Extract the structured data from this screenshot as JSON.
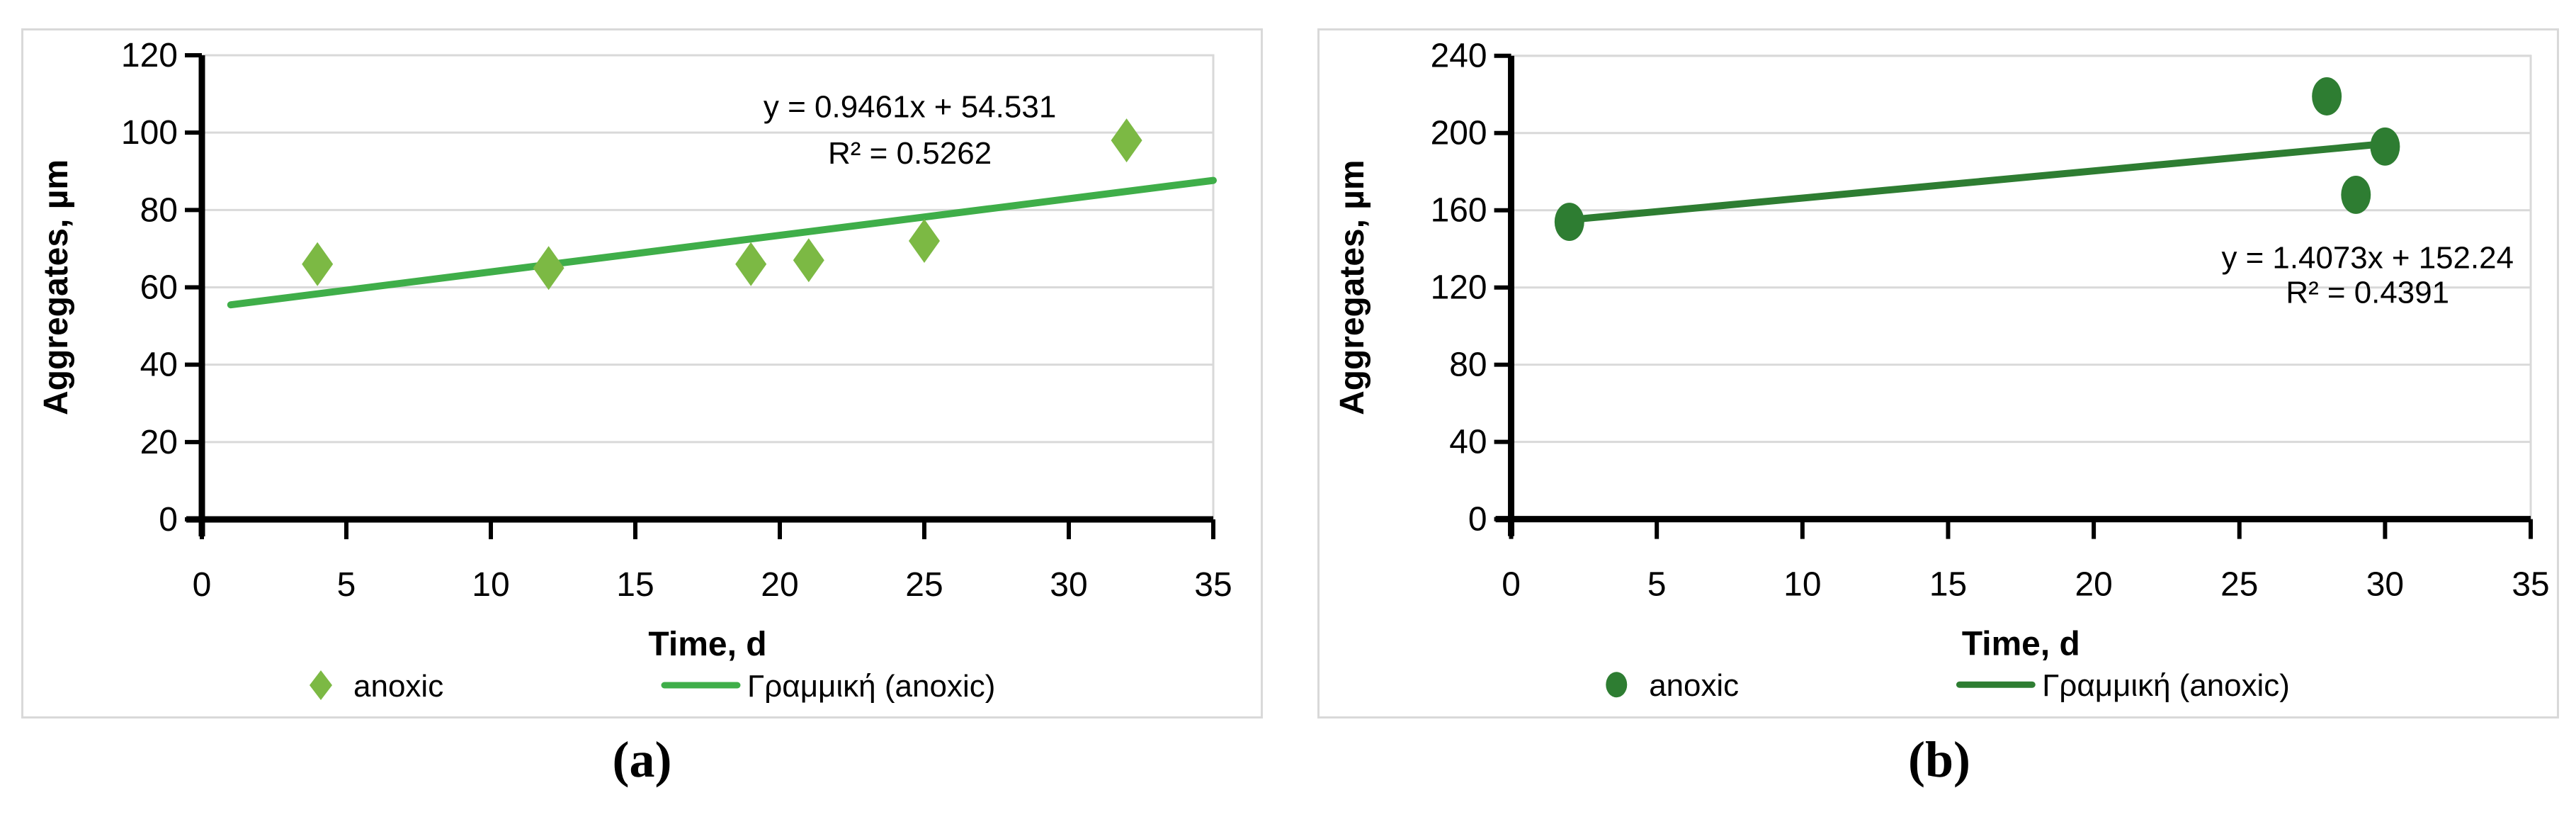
{
  "figure": {
    "background": "#ffffff",
    "panel_border_color": "#d9d9d9",
    "captions": [
      "(a)",
      "(b)"
    ]
  },
  "chart_data": [
    {
      "id": "a",
      "type": "scatter",
      "title": "",
      "xlabel": "Time, d",
      "ylabel": "Aggregates, µm",
      "xlim": [
        0,
        35
      ],
      "xtick_step": 5,
      "ylim": [
        0,
        120
      ],
      "ytick_step": 20,
      "grid": true,
      "grid_color": "#d9d9d9",
      "axis_color": "#000000",
      "legend_position": "bottom",
      "series": [
        {
          "name": "anoxic",
          "marker": "diamond",
          "color": "#7CB944",
          "points": [
            [
              4,
              66
            ],
            [
              12,
              65
            ],
            [
              19,
              66
            ],
            [
              21,
              67
            ],
            [
              25,
              72
            ],
            [
              32,
              98
            ]
          ]
        }
      ],
      "trendline": {
        "name": "Γραμμική (anoxic)",
        "color": "#3FAE49",
        "slope": 0.9461,
        "intercept": 54.531,
        "x_start": 1,
        "x_end": 35,
        "equation": "y = 0.9461x + 54.531",
        "r_squared": "R² = 0.5262",
        "label_x": 24.5,
        "label_y": [
          104,
          92
        ]
      }
    },
    {
      "id": "b",
      "type": "scatter",
      "title": "",
      "xlabel": "Time, d",
      "ylabel": "Aggregates, µm",
      "xlim": [
        0,
        35
      ],
      "xtick_step": 5,
      "ylim": [
        0,
        240
      ],
      "ytick_step": 40,
      "grid": true,
      "grid_color": "#d9d9d9",
      "axis_color": "#000000",
      "legend_position": "bottom",
      "series": [
        {
          "name": "anoxic",
          "marker": "circle",
          "color": "#2E7D32",
          "points": [
            [
              2,
              154
            ],
            [
              28,
              219
            ],
            [
              29,
              168
            ],
            [
              30,
              193
            ]
          ]
        }
      ],
      "trendline": {
        "name": "Γραμμική (anoxic)",
        "color": "#2E7D32",
        "slope": 1.4073,
        "intercept": 152.24,
        "x_start": 2,
        "x_end": 30,
        "equation": "y = 1.4073x + 152.24",
        "r_squared": "R² = 0.4391",
        "label_x": 29.4,
        "label_y": [
          130,
          112
        ]
      }
    }
  ]
}
